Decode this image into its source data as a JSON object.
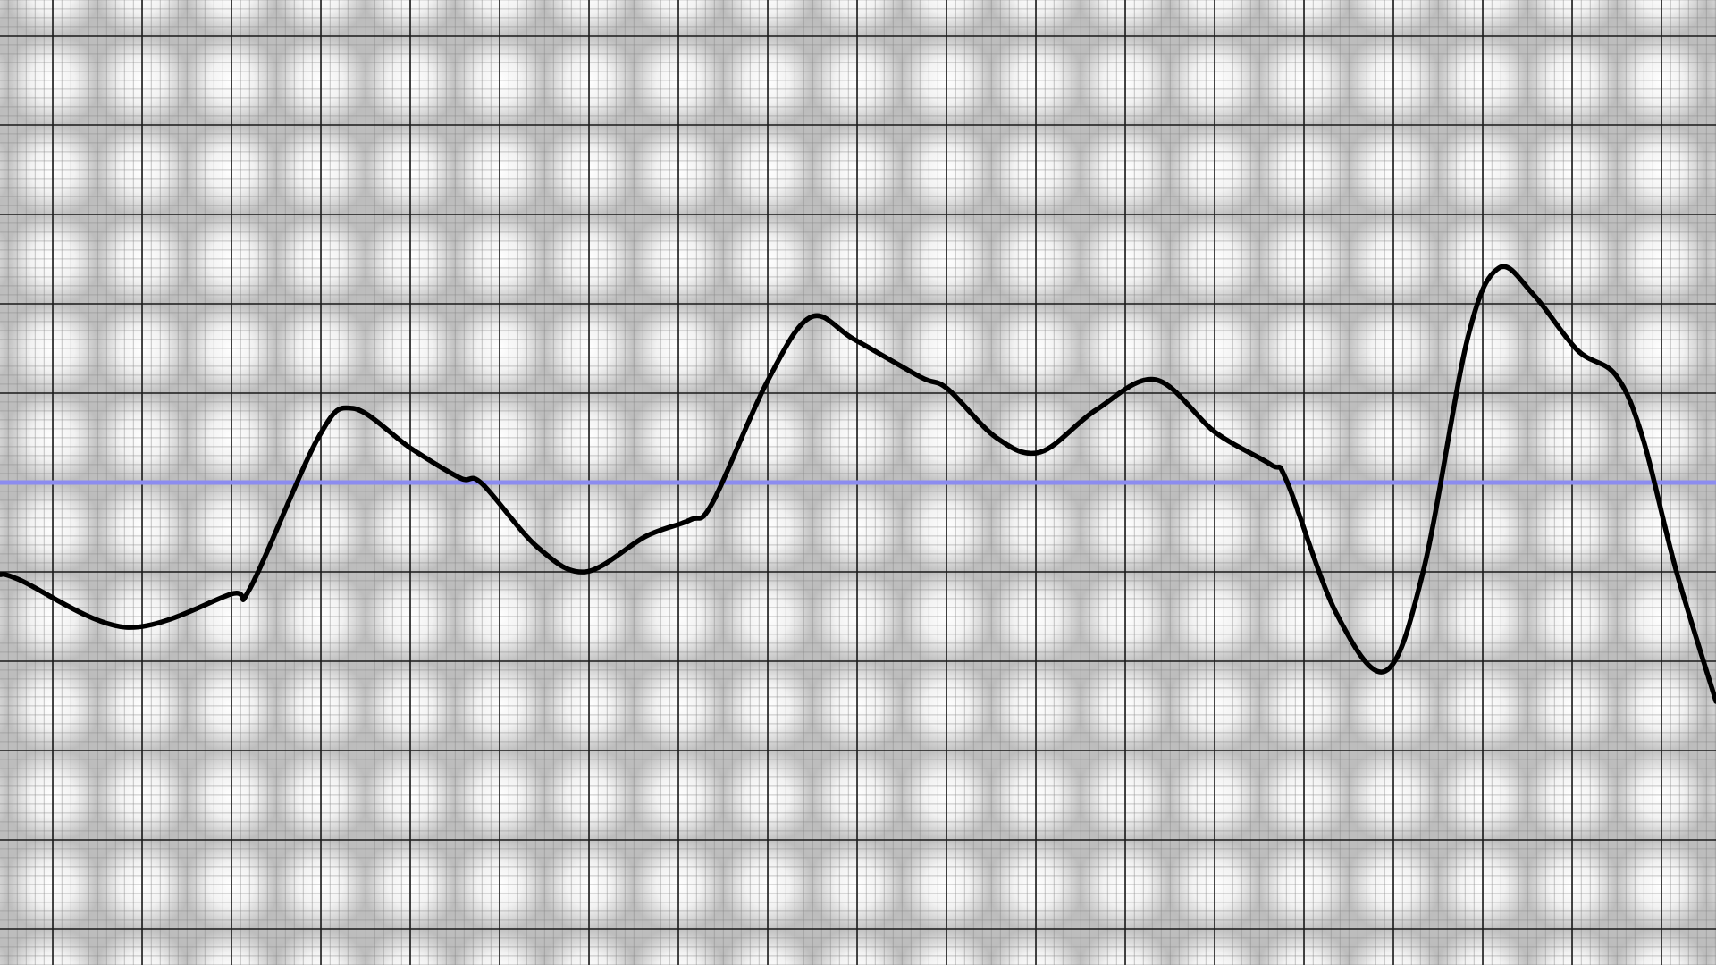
{
  "chart_data": {
    "type": "line",
    "x": [
      -0.59,
      -0.37,
      0.82,
      1.99,
      2.21,
      2.97,
      3.36,
      4.01,
      4.56,
      4.8,
      5.42,
      5.96,
      6.64,
      7.13,
      7.38,
      7.99,
      8.48,
      8.97,
      9.71,
      10.01,
      10.56,
      11.05,
      11.67,
      12.34,
      13.01,
      13.63,
      13.81,
      14.36,
      14.91,
      15.34,
      15.83,
      16.18,
      16.57,
      17.06,
      17.49,
      17.79,
      18.16,
      18.61
    ],
    "series": [
      {
        "color": "#000000",
        "values": [
          -1.03,
          -1.09,
          -1.62,
          -1.25,
          -1.18,
          0.5,
          0.83,
          0.38,
          0.05,
          -0.01,
          -0.72,
          -1.0,
          -0.6,
          -0.42,
          -0.23,
          1.12,
          1.85,
          1.6,
          1.18,
          1.05,
          0.5,
          0.34,
          0.81,
          1.15,
          0.56,
          0.2,
          0.01,
          -1.46,
          -2.11,
          -0.97,
          1.61,
          2.4,
          2.1,
          1.48,
          1.2,
          0.5,
          -0.97,
          -2.45
        ]
      }
    ],
    "xlim": [
      -0.59,
      18.61
    ],
    "ylim": [
      -5.4,
      5.4
    ],
    "xticks": [
      0,
      1,
      2,
      3,
      4,
      5,
      6,
      7,
      8,
      9,
      10,
      11,
      12,
      13,
      14,
      15,
      16,
      17,
      18
    ],
    "yticks": [
      -5,
      -4,
      -3,
      -2,
      -1,
      0,
      1,
      2,
      3,
      4,
      5
    ],
    "grid": true,
    "reference_line": {
      "value": 0,
      "color": "#8c8cf0"
    }
  }
}
